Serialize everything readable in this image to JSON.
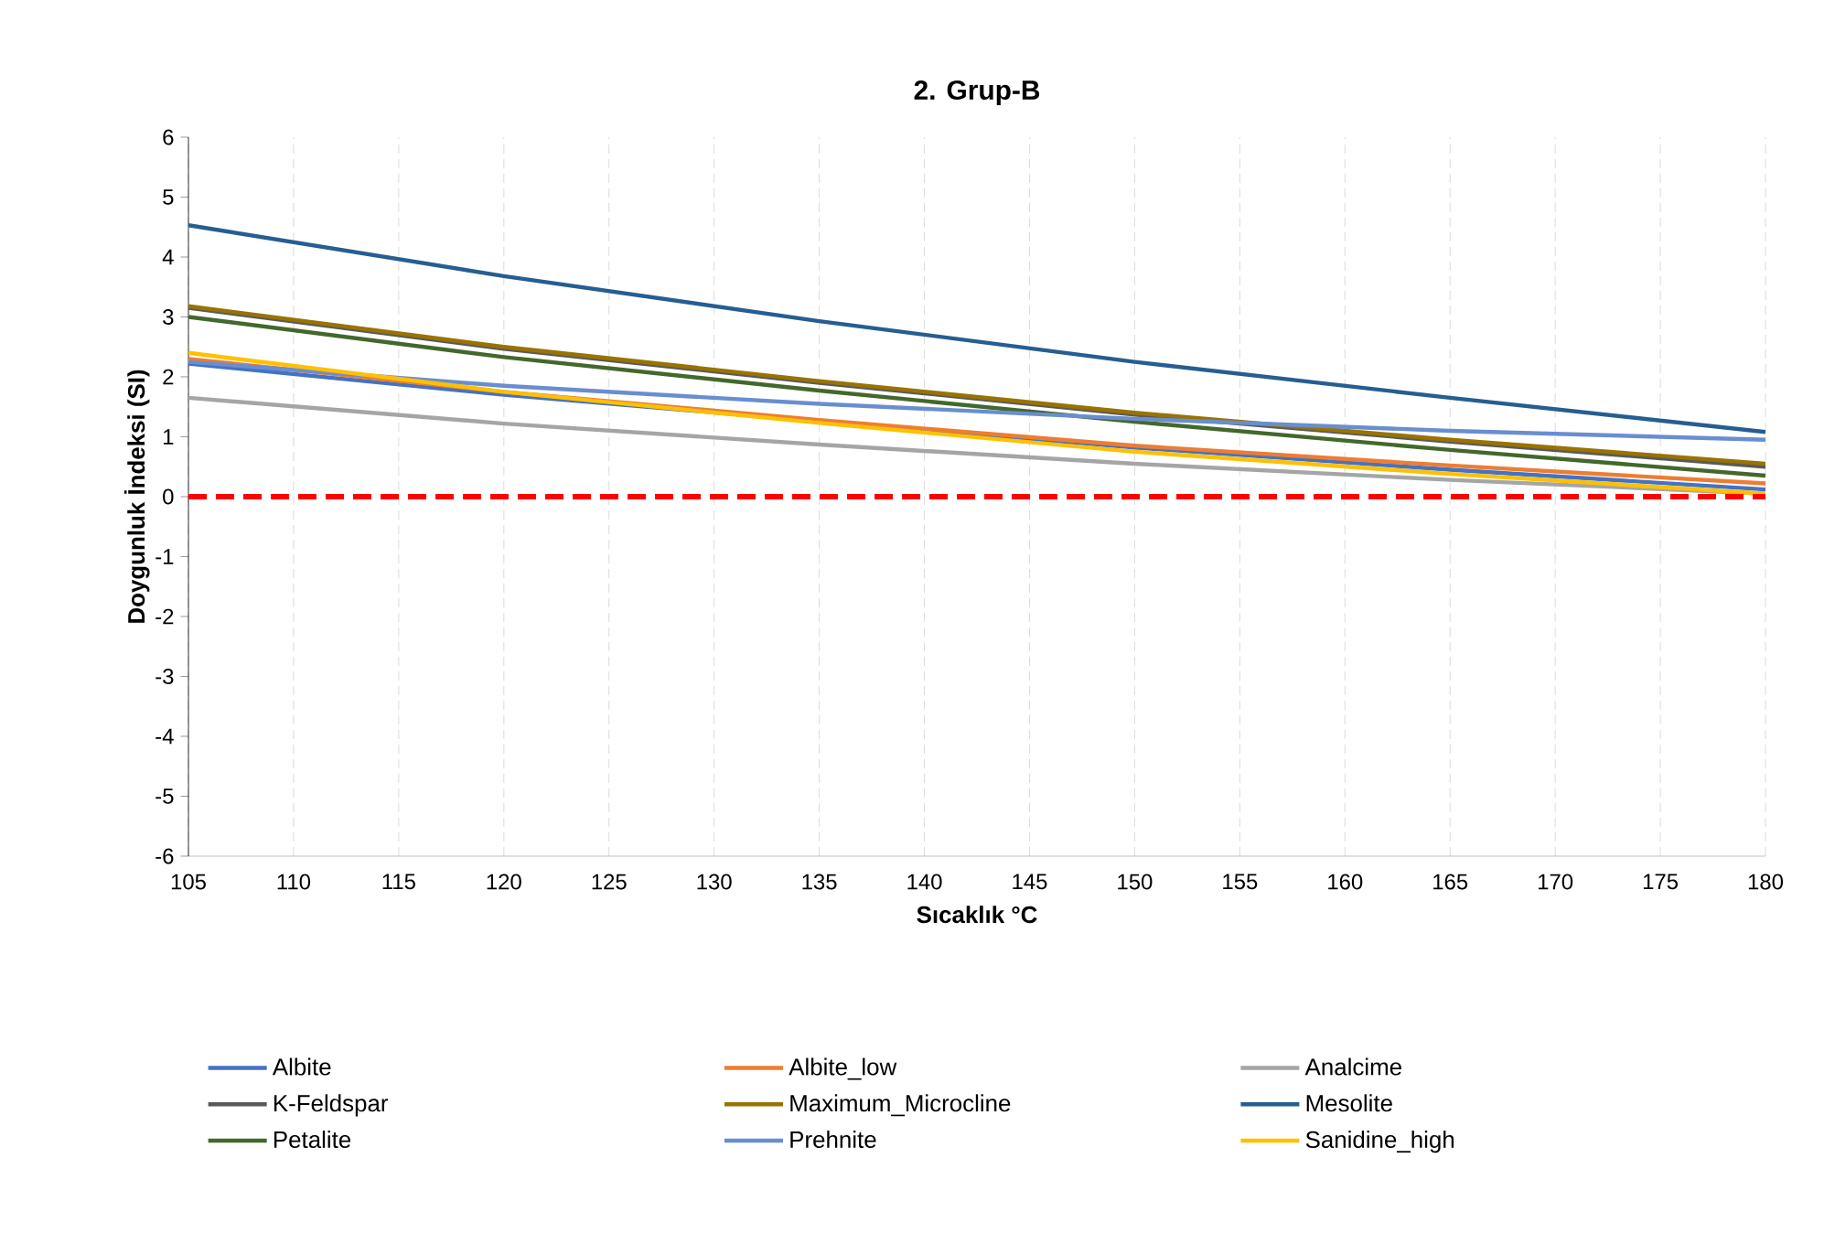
{
  "chart_data": {
    "type": "line",
    "title": "2. Grup-B",
    "xlabel": "Sıcaklık °C",
    "ylabel": "Doygunluk İndeksi (SI)",
    "x": [
      105,
      120,
      135,
      150,
      165,
      180
    ],
    "xlim": [
      105,
      180
    ],
    "xticks": [
      105,
      110,
      115,
      120,
      125,
      130,
      135,
      140,
      145,
      150,
      155,
      160,
      165,
      170,
      175,
      180
    ],
    "ylim": [
      -6,
      6
    ],
    "yticks": [
      -6,
      -5,
      -4,
      -3,
      -2,
      -1,
      0,
      1,
      2,
      3,
      4,
      5,
      6
    ],
    "grid": "x",
    "legend": "bottom",
    "marker": "none",
    "line_style": "solid",
    "ref_lines": [
      {
        "axis": "y",
        "value": 0,
        "color": "#ff0000",
        "line_style": "dashed"
      }
    ],
    "series": [
      {
        "name": "Albite",
        "color": "#4472c4",
        "values": [
          2.22,
          1.7,
          null,
          0.82,
          0.45,
          0.12
        ]
      },
      {
        "name": "Albite_low",
        "color": "#ed7d31",
        "values": [
          2.3,
          1.75,
          1.28,
          0.85,
          0.52,
          0.22
        ]
      },
      {
        "name": "Analcime",
        "color": "#a5a5a5",
        "values": [
          1.65,
          1.22,
          0.87,
          0.55,
          0.28,
          0.05
        ]
      },
      {
        "name": "K-Feldspar",
        "color": "#595959",
        "values": [
          3.15,
          2.47,
          1.9,
          1.37,
          0.92,
          0.5
        ]
      },
      {
        "name": "Maximum_Microcline",
        "color": "#997300",
        "values": [
          3.18,
          2.5,
          1.93,
          1.4,
          0.95,
          0.55
        ]
      },
      {
        "name": "Mesolite",
        "color": "#255e91",
        "values": [
          4.53,
          3.68,
          2.93,
          2.25,
          1.65,
          1.08
        ]
      },
      {
        "name": "Petalite",
        "color": "#43682b",
        "values": [
          3.0,
          2.33,
          1.77,
          1.25,
          0.78,
          0.35
        ]
      },
      {
        "name": "Prehnite",
        "color": "#698ed0",
        "values": [
          2.25,
          1.85,
          1.55,
          1.3,
          1.1,
          0.95
        ]
      },
      {
        "name": "Sanidine_high",
        "color": "#ffc000",
        "values": [
          2.4,
          1.75,
          1.23,
          0.75,
          0.38,
          0.05
        ]
      }
    ]
  }
}
